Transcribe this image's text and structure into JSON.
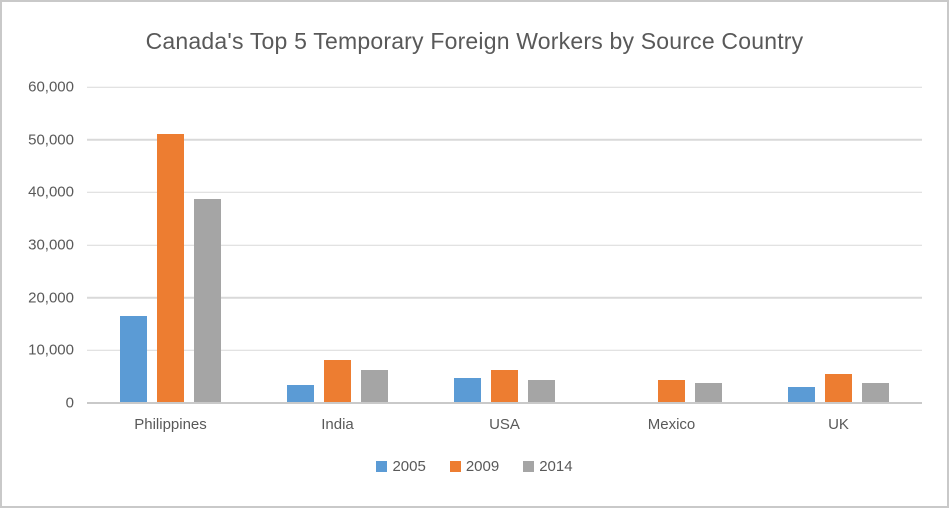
{
  "title": "Canada's Top 5 Temporary Foreign Workers by Source Country",
  "chart_data": {
    "type": "bar",
    "title": "Canada's Top 5 Temporary Foreign Workers by Source Country",
    "categories": [
      "Philippines",
      "India",
      "USA",
      "Mexico",
      "UK"
    ],
    "series": [
      {
        "name": "2005",
        "color": "#5B9BD5",
        "values": [
          16500,
          3500,
          4800,
          0,
          3000
        ]
      },
      {
        "name": "2009",
        "color": "#ED7D31",
        "values": [
          51100,
          8200,
          6300,
          4300,
          5600
        ]
      },
      {
        "name": "2014",
        "color": "#A5A5A5",
        "values": [
          38800,
          6200,
          4400,
          3800,
          3800
        ]
      }
    ],
    "xlabel": "",
    "ylabel": "",
    "ylim": [
      0,
      60000
    ],
    "ytick_interval": 10000,
    "yticks": [
      0,
      10000,
      20000,
      30000,
      40000,
      50000,
      60000
    ],
    "ytick_labels": [
      "0",
      "10,000",
      "20,000",
      "30,000",
      "40,000",
      "50,000",
      "60,000"
    ],
    "grid": true,
    "legend_position": "bottom"
  },
  "colors": {
    "series_2005": "#5B9BD5",
    "series_2009": "#ED7D31",
    "series_2014": "#A5A5A5",
    "gridline": "#D9D9D9",
    "axis_line": "#C9C9C9",
    "text": "#595959",
    "background": "#FFFFFF",
    "border": "#C9C9C9"
  }
}
